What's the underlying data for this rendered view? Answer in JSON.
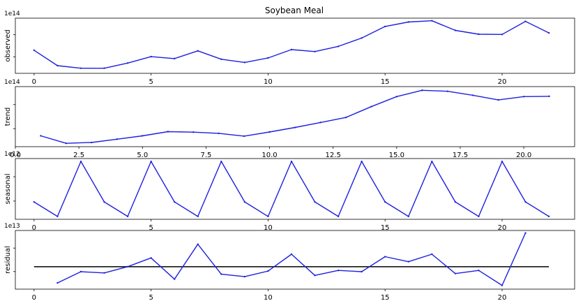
{
  "figure_title": "Soybean Meal",
  "colors": {
    "series": "#1f1fe0",
    "baseline": "#000000",
    "axis": "#000000"
  },
  "chart_data": [
    {
      "type": "line",
      "ylabel": "observed",
      "offset_label": "1e14",
      "x": [
        0,
        1,
        2,
        3,
        4,
        5,
        6,
        7,
        8,
        9,
        10,
        11,
        12,
        13,
        14,
        15,
        16,
        17,
        18,
        19,
        20,
        21,
        22
      ],
      "values": [
        3.5,
        2.3,
        2.1,
        2.1,
        2.5,
        3.0,
        2.85,
        3.45,
        2.8,
        2.55,
        2.9,
        3.55,
        3.4,
        3.8,
        4.45,
        5.35,
        5.7,
        5.8,
        5.05,
        4.75,
        4.73,
        5.75,
        4.85
      ],
      "xlim": [
        -0.8,
        23.1
      ],
      "ylim": [
        1.7,
        6.0
      ],
      "xticks": [
        0,
        5,
        10,
        15,
        20
      ],
      "xticklabels": [
        "0",
        "5",
        "10",
        "15",
        "20"
      ],
      "grid": false
    },
    {
      "type": "line",
      "ylabel": "trend",
      "offset_label": "1e14",
      "x": [
        1,
        2,
        3,
        4,
        5,
        6,
        7,
        8,
        9,
        10,
        11,
        12,
        13,
        14,
        15,
        16,
        17,
        18,
        19,
        20,
        21
      ],
      "values": [
        3.05,
        2.6,
        2.65,
        2.85,
        3.05,
        3.3,
        3.27,
        3.2,
        3.03,
        3.28,
        3.55,
        3.85,
        4.15,
        4.8,
        5.4,
        5.78,
        5.72,
        5.48,
        5.2,
        5.4,
        5.42
      ],
      "xlim": [
        0,
        22
      ],
      "ylim": [
        2.4,
        6.0
      ],
      "xticks": [
        0,
        2.5,
        5.0,
        7.5,
        10.0,
        12.5,
        15.0,
        17.5,
        20.0
      ],
      "xticklabels": [
        "0.0",
        "2.5",
        "5.0",
        "7.5",
        "10.0",
        "12.5",
        "15.0",
        "17.5",
        "20.0"
      ],
      "grid": false
    },
    {
      "type": "line",
      "ylabel": "seasonal",
      "offset_label": "1e12",
      "x": [
        0,
        1,
        2,
        3,
        4,
        5,
        6,
        7,
        8,
        9,
        10,
        11,
        12,
        13,
        14,
        15,
        16,
        17,
        18,
        19,
        20,
        21,
        22
      ],
      "values": [
        0,
        -1,
        2.8,
        0,
        -1,
        2.8,
        0,
        -1,
        2.8,
        0,
        -1,
        2.8,
        0,
        -1,
        2.8,
        0,
        -1,
        2.8,
        0,
        -1,
        2.8,
        0,
        -1
      ],
      "xlim": [
        -0.8,
        23.1
      ],
      "ylim": [
        -1.2,
        3.0
      ],
      "xticks": [
        0,
        5,
        10,
        15,
        20
      ],
      "xticklabels": [
        "0",
        "5",
        "10",
        "15",
        "20"
      ],
      "grid": false
    },
    {
      "type": "line",
      "ylabel": "residual",
      "offset_label": "1e13",
      "x": [
        1,
        2,
        3,
        4,
        5,
        6,
        7,
        8,
        9,
        10,
        11,
        12,
        13,
        14,
        15,
        16,
        17,
        18,
        19,
        20,
        21
      ],
      "values": [
        -1.3,
        -0.4,
        -0.5,
        0,
        0.7,
        -1.0,
        1.8,
        -0.6,
        -0.8,
        -0.35,
        1.0,
        -0.7,
        -0.3,
        -0.4,
        0.8,
        0.4,
        1.0,
        -0.55,
        -0.3,
        -1.5,
        2.7
      ],
      "baseline": 0,
      "xlim": [
        -0.8,
        23.1
      ],
      "ylim": [
        -1.8,
        2.9
      ],
      "xticks": [
        0,
        5,
        10,
        15,
        20
      ],
      "xticklabels": [
        "0",
        "5",
        "10",
        "15",
        "20"
      ],
      "grid": false
    }
  ]
}
